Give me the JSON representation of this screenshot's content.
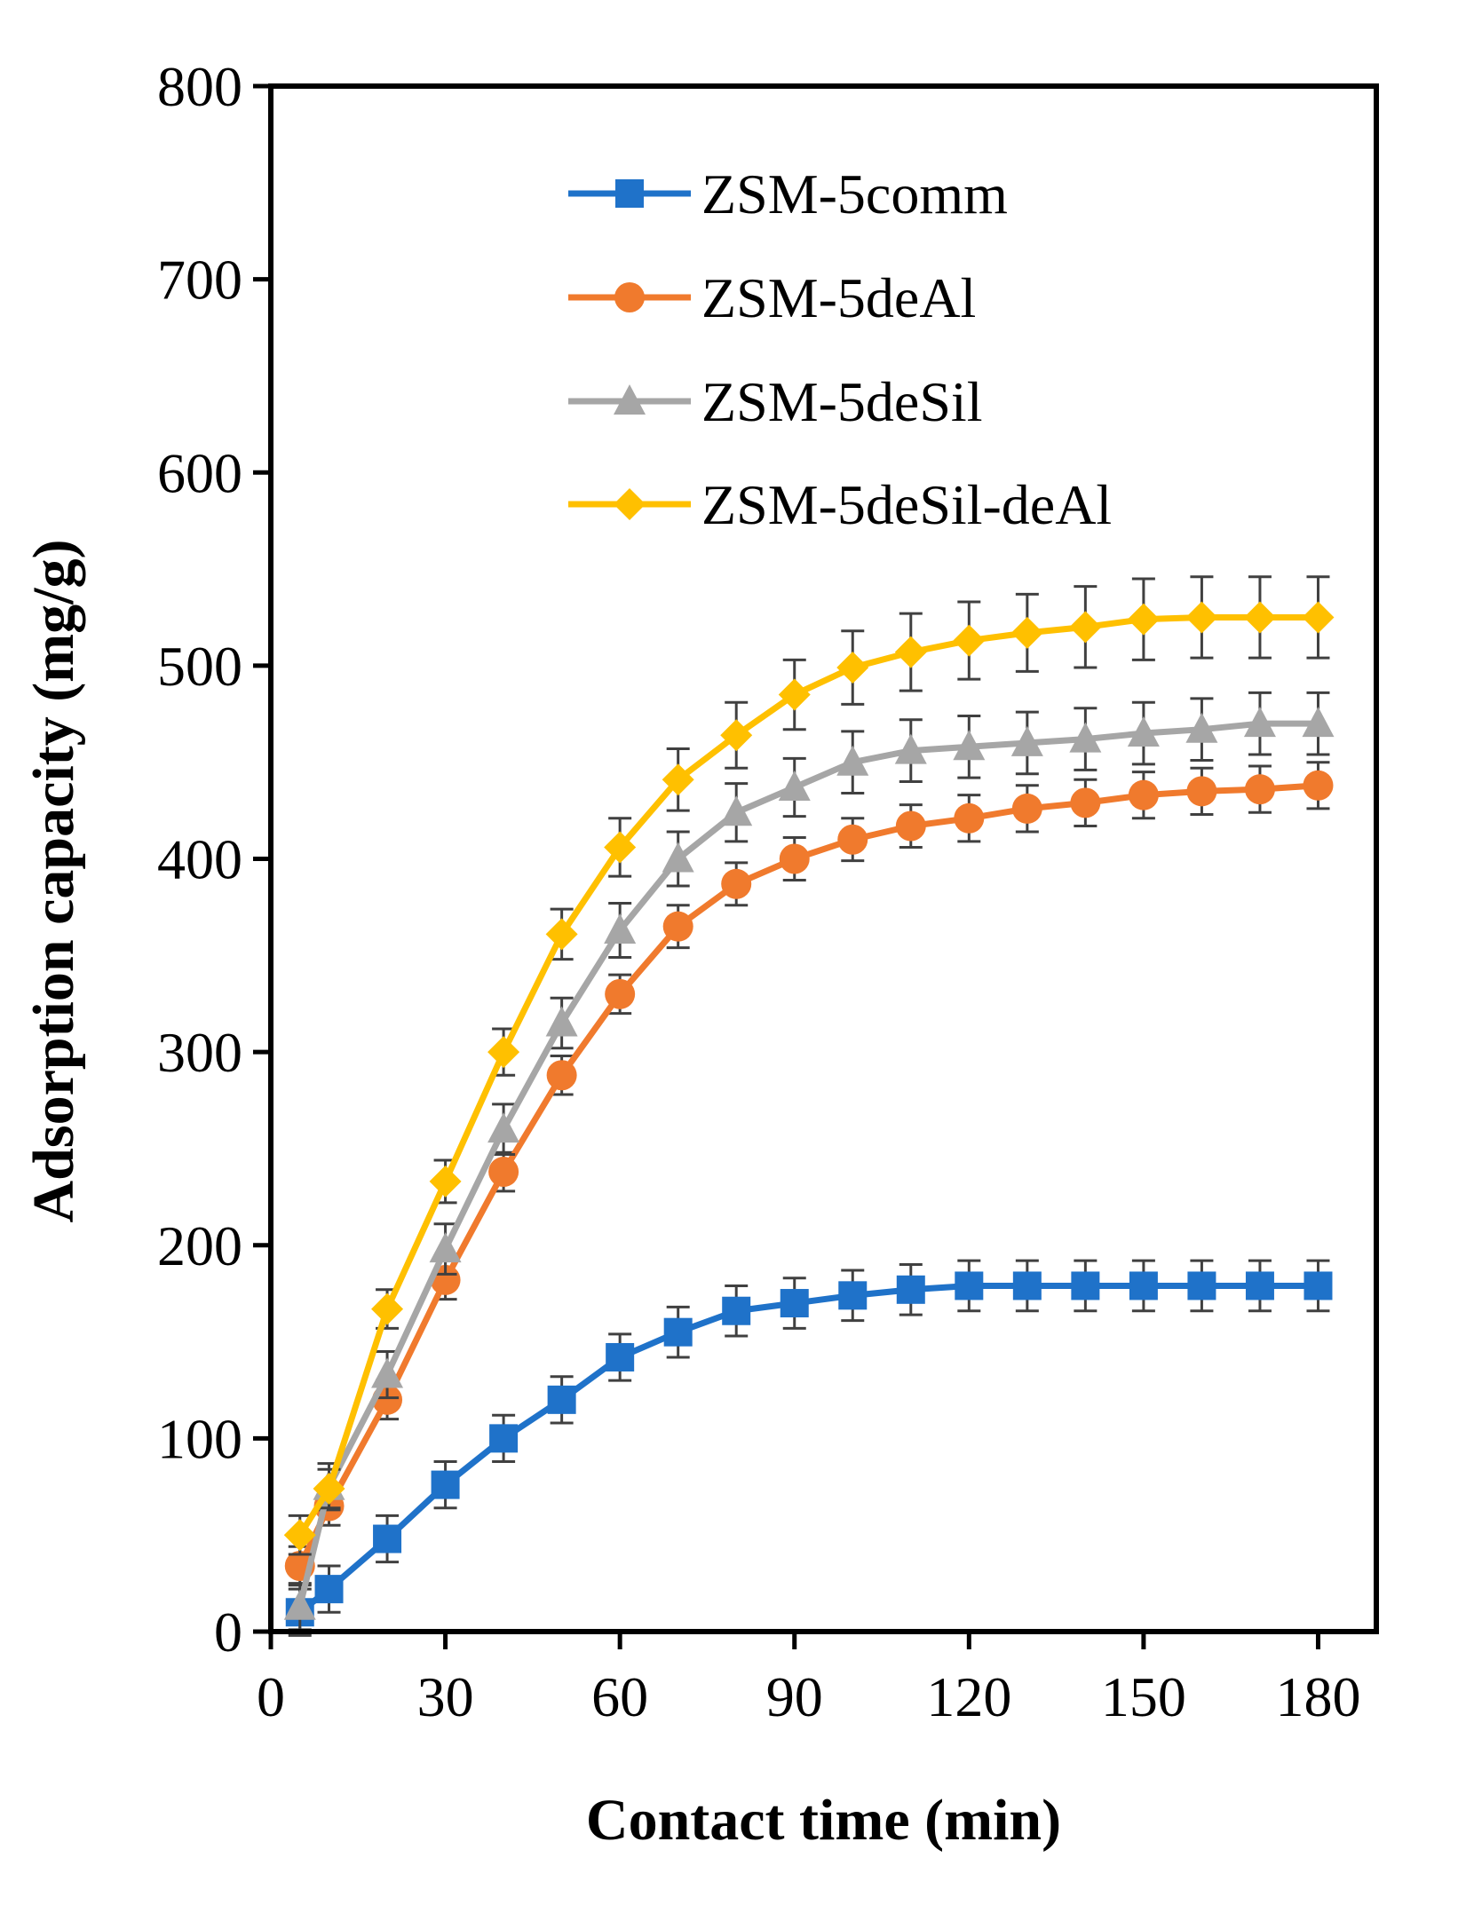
{
  "chart_data": {
    "type": "line",
    "title": "",
    "xlabel": "Contact time (min)",
    "ylabel": "Adsorption capacity (mg/g)",
    "xlim": [
      0,
      190
    ],
    "ylim": [
      0,
      800
    ],
    "xticks": [
      0,
      30,
      60,
      90,
      120,
      150,
      180
    ],
    "yticks": [
      0,
      100,
      200,
      300,
      400,
      500,
      600,
      700,
      800
    ],
    "grid": false,
    "legend_position": "top-center",
    "x": [
      5,
      10,
      20,
      30,
      40,
      50,
      60,
      70,
      80,
      90,
      100,
      110,
      120,
      130,
      140,
      150,
      160,
      170,
      180
    ],
    "series": [
      {
        "name": "ZSM-5comm",
        "color": "#1f72c9",
        "marker": "square",
        "values": [
          10,
          22,
          48,
          76,
          100,
          120,
          142,
          155,
          166,
          170,
          174,
          177,
          179,
          179,
          179,
          179,
          179,
          179,
          179
        ],
        "errors": [
          12,
          12,
          12,
          12,
          12,
          12,
          12,
          13,
          13,
          13,
          13,
          13,
          13,
          13,
          13,
          13,
          13,
          13,
          13
        ]
      },
      {
        "name": "ZSM-5deAl",
        "color": "#f07a2d",
        "marker": "circle",
        "values": [
          34,
          65,
          120,
          182,
          238,
          288,
          330,
          365,
          387,
          400,
          410,
          417,
          421,
          426,
          429,
          433,
          435,
          436,
          438
        ],
        "errors": [
          10,
          10,
          10,
          10,
          10,
          10,
          10,
          11,
          11,
          11,
          11,
          11,
          12,
          12,
          12,
          12,
          12,
          12,
          12
        ]
      },
      {
        "name": "ZSM-5deSil",
        "color": "#a6a6a6",
        "marker": "triangle",
        "values": [
          13,
          75,
          133,
          198,
          260,
          315,
          363,
          400,
          424,
          437,
          450,
          456,
          458,
          460,
          462,
          465,
          467,
          470,
          470
        ],
        "errors": [
          12,
          12,
          12,
          13,
          13,
          13,
          14,
          14,
          15,
          15,
          16,
          16,
          16,
          16,
          16,
          16,
          16,
          16,
          16
        ]
      },
      {
        "name": "ZSM-5deSil-deAl",
        "color": "#ffc000",
        "marker": "diamond",
        "values": [
          50,
          74,
          167,
          233,
          300,
          361,
          406,
          441,
          464,
          485,
          499,
          507,
          513,
          517,
          520,
          524,
          525,
          525,
          525
        ],
        "errors": [
          10,
          10,
          10,
          11,
          12,
          13,
          15,
          16,
          17,
          18,
          19,
          20,
          20,
          20,
          21,
          21,
          21,
          21,
          21
        ]
      }
    ]
  }
}
